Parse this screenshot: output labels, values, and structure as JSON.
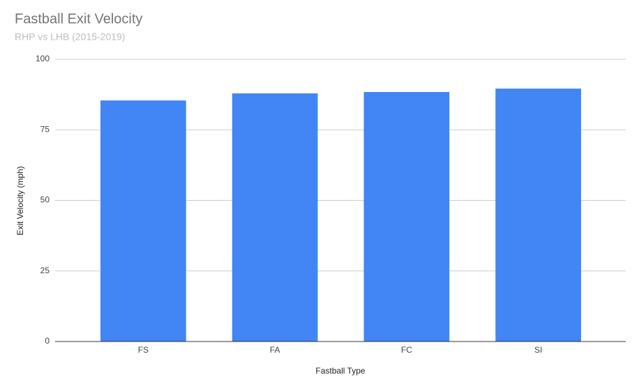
{
  "chart_data": {
    "type": "bar",
    "title": "Fastball Exit Velocity",
    "subtitle": "RHP vs LHB (2015-2019)",
    "x_label": "Fastball Type",
    "y_label": "Exit Velocity (mph)",
    "categories": [
      "FS",
      "FA",
      "FC",
      "SI"
    ],
    "values": [
      85.4,
      87.9,
      88.4,
      89.6
    ],
    "color": "#4285f4",
    "ylim": [
      0,
      100
    ],
    "yticks": [
      0,
      25,
      50,
      75,
      100
    ],
    "grid": true
  }
}
